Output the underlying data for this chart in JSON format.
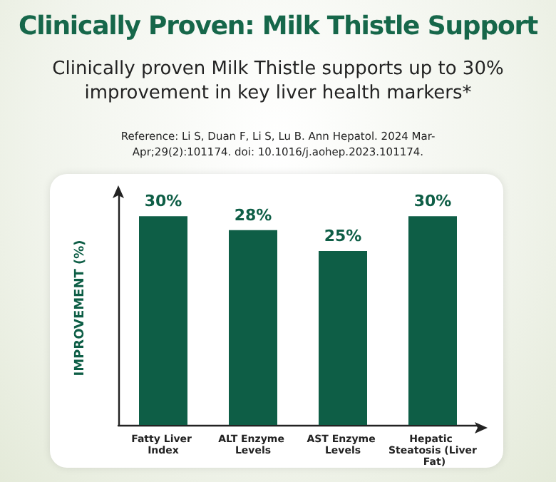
{
  "chart_data": {
    "type": "bar",
    "title": "Clinically Proven: Milk Thistle Support",
    "subtitle": "Clinically proven Milk Thistle supports up to 30% improvement in key liver health markers*",
    "annotations": [
      "Reference: Li S, Duan F, Li S, Lu B. Ann Hepatol. 2024 Mar-Apr;29(2):101174. doi: 10.1016/j.aohep.2023.101174."
    ],
    "ylabel": "IMPROVEMENT (%)",
    "categories": [
      "Fatty Liver Index",
      "ALT Enzyme Levels",
      "AST Enzyme Levels",
      "Hepatic Steatosis (Liver Fat)"
    ],
    "values": [
      30,
      28,
      25,
      30
    ],
    "value_labels": [
      "30%",
      "28%",
      "25%",
      "30%"
    ],
    "color": "#0e5e46"
  }
}
